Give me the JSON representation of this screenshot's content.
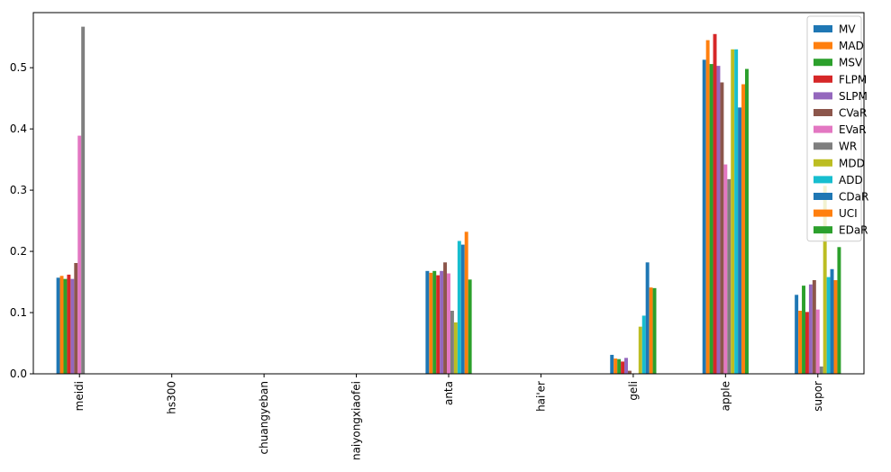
{
  "chart_data": {
    "type": "bar",
    "title": "",
    "xlabel": "",
    "ylabel": "",
    "ylim": [
      0,
      0.59
    ],
    "yticks": [
      0.0,
      0.1,
      0.2,
      0.3,
      0.4,
      0.5
    ],
    "ytick_labels": [
      "0.0",
      "0.1",
      "0.2",
      "0.3",
      "0.4",
      "0.5"
    ],
    "grid": false,
    "legend_position": "top-right",
    "categories": [
      "meidi",
      "hs300",
      "chuangyeban",
      "naiyongxiaofei",
      "anta",
      "hai'er",
      "geli",
      "apple",
      "supor"
    ],
    "series": [
      {
        "name": "MV",
        "color": "#1f77b4",
        "values": [
          0.157,
          0,
          0,
          0,
          0.168,
          0,
          0.031,
          0.513,
          0.129
        ]
      },
      {
        "name": "MAD",
        "color": "#ff7f0e",
        "values": [
          0.16,
          0,
          0,
          0,
          0.165,
          0,
          0.025,
          0.545,
          0.103
        ]
      },
      {
        "name": "MSV",
        "color": "#2ca02c",
        "values": [
          0.155,
          0,
          0,
          0,
          0.168,
          0,
          0.024,
          0.506,
          0.144
        ]
      },
      {
        "name": "FLPM",
        "color": "#d62728",
        "values": [
          0.162,
          0,
          0,
          0,
          0.161,
          0,
          0.02,
          0.555,
          0.101
        ]
      },
      {
        "name": "SLPM",
        "color": "#9467bd",
        "values": [
          0.155,
          0,
          0,
          0,
          0.168,
          0,
          0.026,
          0.503,
          0.146
        ]
      },
      {
        "name": "CVaR",
        "color": "#8c564b",
        "values": [
          0.181,
          0,
          0,
          0,
          0.182,
          0,
          0.005,
          0.476,
          0.153
        ]
      },
      {
        "name": "EVaR",
        "color": "#e377c2",
        "values": [
          0.389,
          0,
          0,
          0,
          0.164,
          0,
          0.0,
          0.342,
          0.105
        ]
      },
      {
        "name": "WR",
        "color": "#7f7f7f",
        "values": [
          0.567,
          0,
          0,
          0,
          0.103,
          0,
          0.0,
          0.318,
          0.012
        ]
      },
      {
        "name": "MDD",
        "color": "#bcbd22",
        "values": [
          0.0,
          0,
          0,
          0,
          0.084,
          0,
          0.077,
          0.53,
          0.307
        ]
      },
      {
        "name": "ADD",
        "color": "#17becf",
        "values": [
          0.0,
          0,
          0,
          0,
          0.217,
          0,
          0.095,
          0.53,
          0.158
        ]
      },
      {
        "name": "CDaR",
        "color": "#1f77b4",
        "values": [
          0.0,
          0,
          0,
          0,
          0.211,
          0,
          0.182,
          0.435,
          0.171
        ]
      },
      {
        "name": "UCI",
        "color": "#ff7f0e",
        "values": [
          0.0,
          0,
          0,
          0,
          0.232,
          0,
          0.141,
          0.473,
          0.153
        ]
      },
      {
        "name": "EDaR",
        "color": "#2ca02c",
        "values": [
          0.0,
          0,
          0,
          0,
          0.154,
          0,
          0.14,
          0.498,
          0.207
        ]
      }
    ]
  }
}
